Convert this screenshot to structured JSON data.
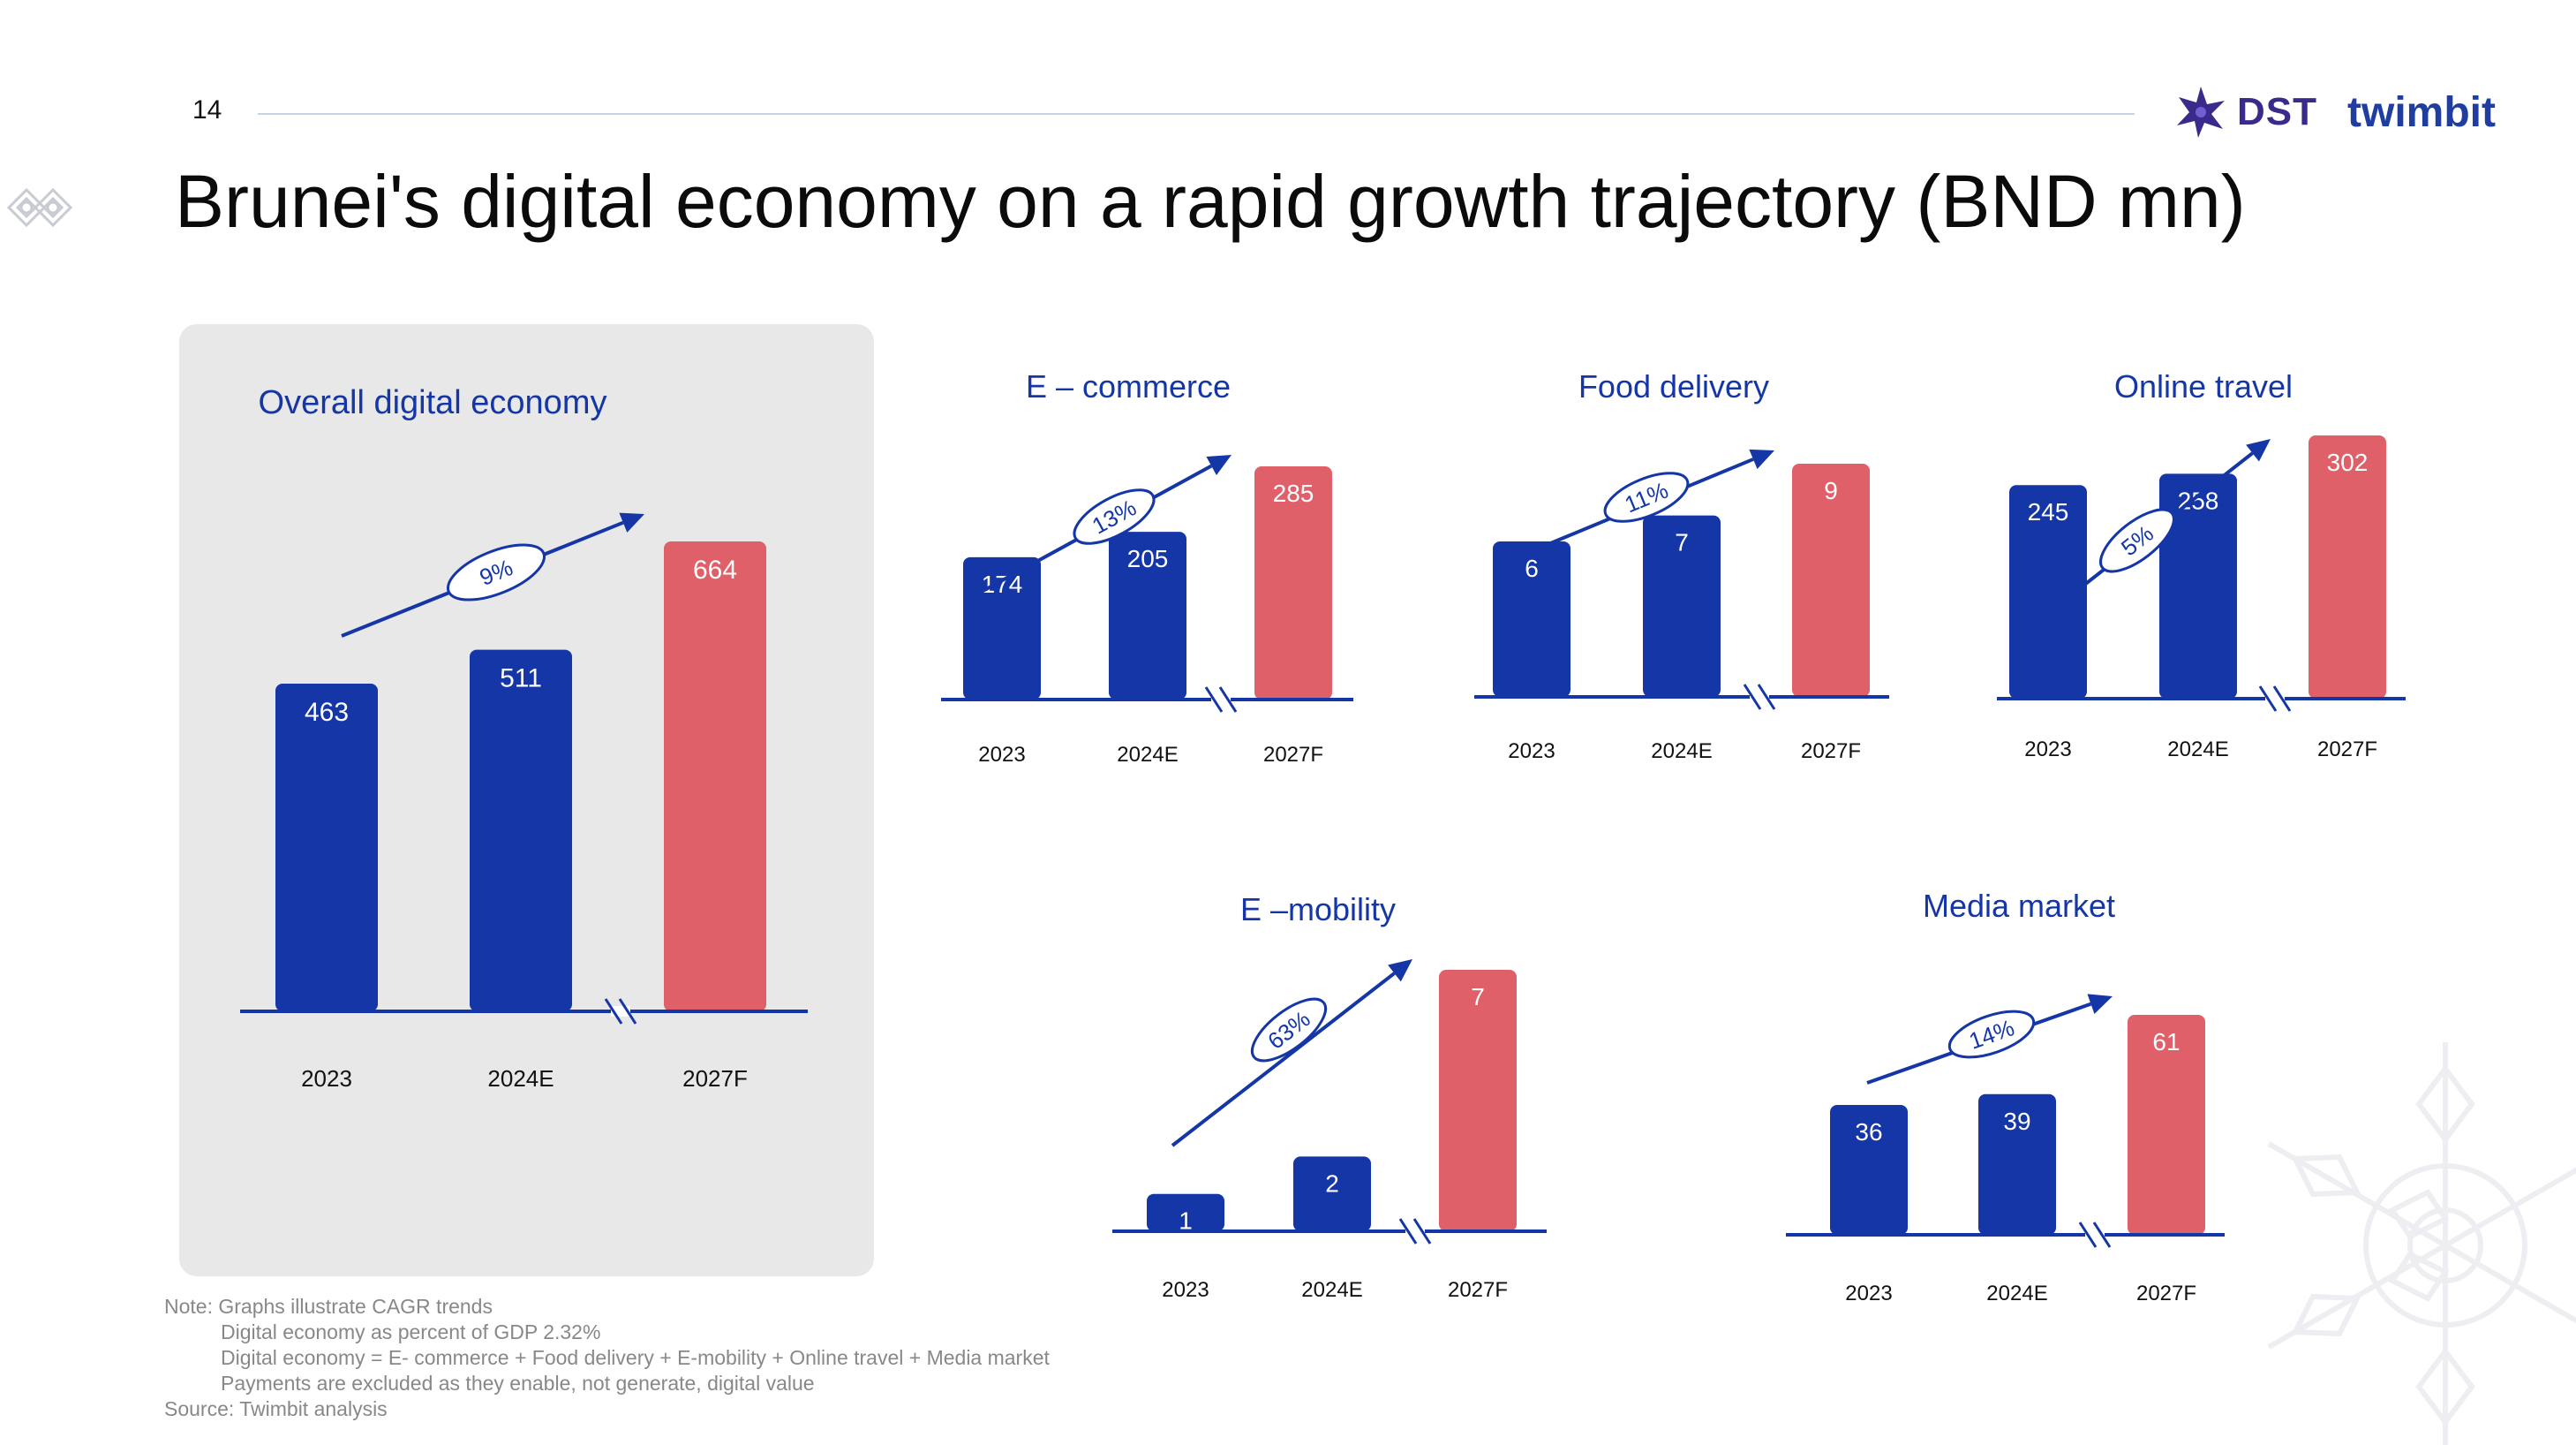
{
  "page_number": "14",
  "title": "Brunei's digital economy on a rapid growth trajectory (BND mn)",
  "logos": {
    "dst": "DST",
    "twimbit": "twimbit"
  },
  "colors": {
    "actual": "#1436a6",
    "forecast": "#e0606a",
    "text_blue": "#1436a6",
    "panel": "#e8e8e8"
  },
  "chart_data": [
    {
      "type": "bar",
      "title": "Overall digital economy",
      "categories": [
        "2023",
        "2024E",
        "2027F"
      ],
      "values": [
        463,
        511,
        664
      ],
      "cagr": "9%",
      "ylim": [
        0,
        700
      ]
    },
    {
      "type": "bar",
      "title": "E – commerce",
      "categories": [
        "2023",
        "2024E",
        "2027F"
      ],
      "values": [
        174,
        205,
        285
      ],
      "cagr": "13%",
      "ylim": [
        0,
        300
      ]
    },
    {
      "type": "bar",
      "title": "Food delivery",
      "categories": [
        "2023",
        "2024E",
        "2027F"
      ],
      "values": [
        6,
        7,
        9
      ],
      "cagr": "11%",
      "ylim": [
        0,
        10
      ]
    },
    {
      "type": "bar",
      "title": "Online travel",
      "categories": [
        "2023",
        "2024E",
        "2027F"
      ],
      "values": [
        245,
        258,
        302
      ],
      "cagr": "5%",
      "ylim": [
        0,
        310
      ]
    },
    {
      "type": "bar",
      "title": "E –mobility",
      "categories": [
        "2023",
        "2024E",
        "2027F"
      ],
      "values": [
        1,
        2,
        7
      ],
      "cagr": "63%",
      "ylim": [
        0,
        7.5
      ]
    },
    {
      "type": "bar",
      "title": "Media market",
      "categories": [
        "2023",
        "2024E",
        "2027F"
      ],
      "values": [
        36,
        39,
        61
      ],
      "cagr": "14%",
      "ylim": [
        0,
        65
      ]
    }
  ],
  "notes": {
    "line1": "Note: Graphs illustrate CAGR trends",
    "line2": "Digital economy as percent of GDP 2.32%",
    "line3": "Digital economy = E- commerce + Food delivery + E-mobility + Online travel + Media market",
    "line4": "Payments are excluded as they enable, not generate, digital value",
    "source": "Source: Twimbit analysis"
  }
}
